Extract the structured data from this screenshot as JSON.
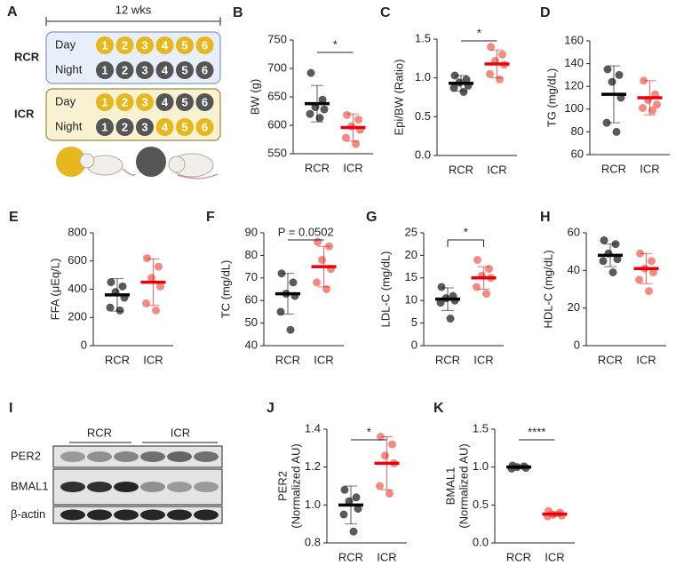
{
  "panel_a": {
    "label": "A",
    "duration": "12 wks",
    "groups": [
      {
        "name": "RCR",
        "fill": "#e9eff9",
        "stroke": "#7c9ad2",
        "rows": [
          {
            "label": "Day",
            "numbers": [
              "1",
              "2",
              "3",
              "4",
              "5",
              "6"
            ],
            "colors": [
              "#e6b81e",
              "#e6b81e",
              "#e6b81e",
              "#e6b81e",
              "#e6b81e",
              "#e6b81e"
            ]
          },
          {
            "label": "Night",
            "numbers": [
              "1",
              "2",
              "3",
              "4",
              "5",
              "6"
            ],
            "colors": [
              "#555555",
              "#555555",
              "#555555",
              "#555555",
              "#555555",
              "#555555"
            ]
          }
        ]
      },
      {
        "name": "ICR",
        "fill": "#f8f2d2",
        "stroke": "#9c8a3c",
        "rows": [
          {
            "label": "Day",
            "numbers": [
              "1",
              "2",
              "3",
              "4",
              "5",
              "6"
            ],
            "colors": [
              "#e6b81e",
              "#e6b81e",
              "#e6b81e",
              "#555555",
              "#555555",
              "#555555"
            ]
          },
          {
            "label": "Night",
            "numbers": [
              "1",
              "2",
              "3",
              "4",
              "5",
              "6"
            ],
            "colors": [
              "#555555",
              "#555555",
              "#555555",
              "#e6b81e",
              "#e6b81e",
              "#e6b81e"
            ]
          }
        ]
      }
    ]
  },
  "chart_data": [
    {
      "type": "strip",
      "panel": "B",
      "ylabel": [
        "BW (g)"
      ],
      "categories": [
        "RCR",
        "ICR"
      ],
      "series": [
        {
          "color": "#5a5a5a",
          "line_color": "#000000",
          "values": [
            692,
            645,
            632,
            628,
            620,
            613
          ],
          "mean": 638,
          "sd": 32
        },
        {
          "color": "#f28b82",
          "line_color": "#e8000b",
          "values": [
            618,
            610,
            598,
            592,
            578,
            567
          ],
          "mean": 596,
          "sd": 24
        }
      ],
      "ylim": [
        550,
        750
      ],
      "yticks": [
        550,
        600,
        650,
        700,
        750
      ],
      "significance": "*"
    },
    {
      "type": "strip",
      "panel": "C",
      "ylabel": [
        "Epi/BW (Ratio)"
      ],
      "categories": [
        "RCR",
        "ICR"
      ],
      "series": [
        {
          "color": "#5a5a5a",
          "line_color": "#000000",
          "values": [
            1.03,
            0.98,
            0.94,
            0.9,
            0.87,
            0.82
          ],
          "mean": 0.93,
          "sd": 0.1
        },
        {
          "color": "#f28b82",
          "line_color": "#e8000b",
          "values": [
            1.4,
            1.3,
            1.22,
            1.17,
            1.05,
            0.98
          ],
          "mean": 1.18,
          "sd": 0.18
        }
      ],
      "ylim": [
        0,
        1.5
      ],
      "yticks": [
        {
          "value": 0,
          "label": "0.0"
        },
        0.5,
        {
          "value": 1,
          "label": "1.0"
        },
        1.5
      ],
      "significance": "*"
    },
    {
      "type": "strip",
      "panel": "D",
      "ylabel": [
        "TG (mg/dL)"
      ],
      "categories": [
        "RCR",
        "ICR"
      ],
      "series": [
        {
          "color": "#5a5a5a",
          "line_color": "#000000",
          "values": [
            135,
            130,
            124,
            110,
            88,
            80
          ],
          "mean": 113,
          "sd": 25
        },
        {
          "color": "#f28b82",
          "line_color": "#e8000b",
          "values": [
            125,
            113,
            108,
            104,
            101,
            99
          ],
          "mean": 110,
          "sd": 15
        }
      ],
      "ylim": [
        60,
        160
      ],
      "yticks": [
        60,
        80,
        100,
        120,
        140,
        160
      ]
    },
    {
      "type": "strip",
      "panel": "E",
      "ylabel": [
        "FFA (μEq/L)"
      ],
      "categories": [
        "RCR",
        "ICR"
      ],
      "series": [
        {
          "color": "#5a5a5a",
          "line_color": "#000000",
          "values": [
            450,
            420,
            380,
            340,
            270,
            250
          ],
          "mean": 360,
          "sd": 115
        },
        {
          "color": "#f28b82",
          "line_color": "#e8000b",
          "values": [
            620,
            560,
            480,
            420,
            300,
            250
          ],
          "mean": 450,
          "sd": 165
        }
      ],
      "ylim": [
        0,
        800
      ],
      "yticks": [
        0,
        200,
        400,
        600,
        800
      ]
    },
    {
      "type": "strip",
      "panel": "F",
      "ylabel": [
        "TC (mg/dL)"
      ],
      "categories": [
        "RCR",
        "ICR"
      ],
      "series": [
        {
          "color": "#5a5a5a",
          "line_color": "#000000",
          "values": [
            72,
            68,
            63,
            62,
            55,
            47
          ],
          "mean": 63,
          "sd": 9
        },
        {
          "color": "#f28b82",
          "line_color": "#e8000b",
          "values": [
            86,
            84,
            78,
            74,
            68,
            65
          ],
          "mean": 75,
          "sd": 9
        }
      ],
      "ylim": [
        40,
        90
      ],
      "yticks": [
        40,
        50,
        60,
        70,
        80,
        90
      ],
      "significance": "P = 0.0502"
    },
    {
      "type": "strip",
      "panel": "G",
      "ylabel": [
        "LDL-C (mg/dL)"
      ],
      "categories": [
        "RCR",
        "ICR"
      ],
      "series": [
        {
          "color": "#5a5a5a",
          "line_color": "#000000",
          "values": [
            13,
            11,
            10.5,
            10,
            9.5,
            6
          ],
          "mean": 10.3,
          "sd": 2.5
        },
        {
          "color": "#f28b82",
          "line_color": "#e8000b",
          "values": [
            19,
            17,
            15.5,
            15,
            13,
            11.5
          ],
          "mean": 15,
          "sd": 2.5
        }
      ],
      "ylim": [
        0,
        25
      ],
      "yticks": [
        0,
        5,
        10,
        15,
        20,
        25
      ],
      "significance": "*",
      "bracket_ends": true
    },
    {
      "type": "strip",
      "panel": "H",
      "ylabel": [
        "HDL-C (mg/dL)"
      ],
      "categories": [
        "RCR",
        "ICR"
      ],
      "series": [
        {
          "color": "#5a5a5a",
          "line_color": "#000000",
          "values": [
            56,
            54,
            49,
            46,
            45,
            39
          ],
          "mean": 48,
          "sd": 6
        },
        {
          "color": "#f28b82",
          "line_color": "#e8000b",
          "values": [
            49,
            45,
            41,
            39,
            35,
            29
          ],
          "mean": 41,
          "sd": 8
        }
      ],
      "ylim": [
        0,
        60
      ],
      "yticks": [
        0,
        20,
        40,
        60
      ]
    },
    {
      "type": "strip",
      "panel": "J",
      "ylabel": [
        "PER2",
        "(Normalized AU)"
      ],
      "categories": [
        "RCR",
        "ICR"
      ],
      "series": [
        {
          "color": "#5a5a5a",
          "line_color": "#000000",
          "values": [
            1.08,
            1.04,
            1.02,
            0.98,
            0.95,
            0.86
          ],
          "mean": 1.0,
          "sd": 0.1
        },
        {
          "color": "#f28b82",
          "line_color": "#e8000b",
          "values": [
            1.36,
            1.32,
            1.26,
            1.22,
            1.1,
            1.06
          ],
          "mean": 1.22,
          "sd": 0.14
        }
      ],
      "ylim": [
        0.8,
        1.4
      ],
      "yticks": [
        0.8,
        {
          "value": 1,
          "label": "1.0"
        },
        1.2,
        1.4
      ],
      "significance": "*"
    },
    {
      "type": "strip",
      "panel": "K",
      "ylabel": [
        "BMAL1",
        "(Normalized AU)"
      ],
      "categories": [
        "RCR",
        "ICR"
      ],
      "series": [
        {
          "color": "#5a5a5a",
          "line_color": "#000000",
          "values": [
            1.02,
            1.01,
            1.0,
            0.99,
            0.98
          ],
          "mean": 1.0,
          "sd": 0.02
        },
        {
          "color": "#f28b82",
          "line_color": "#e8000b",
          "values": [
            0.42,
            0.4,
            0.37,
            0.36,
            0.35
          ],
          "mean": 0.38,
          "sd": 0.03
        }
      ],
      "ylim": [
        0,
        1.5
      ],
      "yticks": [
        {
          "value": 0,
          "label": "0.0"
        },
        0.5,
        {
          "value": 1,
          "label": "1.0"
        },
        1.5
      ],
      "significance": "****"
    }
  ],
  "panel_i": {
    "label": "I",
    "groups": [
      "RCR",
      "ICR"
    ],
    "rows": [
      "PER2",
      "BMAL1",
      "β-actin"
    ]
  }
}
